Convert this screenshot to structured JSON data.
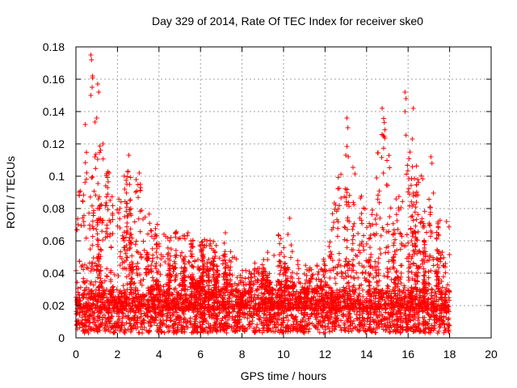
{
  "chart_data": {
    "type": "scatter",
    "title": "Day 329 of 2014, Rate Of TEC Index for receiver ske0",
    "xlabel": "GPS time / hours",
    "ylabel": "ROTI / TECUs",
    "xlim": [
      0,
      20
    ],
    "ylim": [
      0,
      0.18
    ],
    "x_ticks": [
      "0",
      "2",
      "4",
      "6",
      "8",
      "10",
      "12",
      "14",
      "16",
      "18",
      "20"
    ],
    "y_ticks": [
      "0",
      "0.02",
      "0.04",
      "0.06",
      "0.08",
      "0.1",
      "0.12",
      "0.14",
      "0.16",
      "0.18"
    ],
    "grid": true,
    "marker": "plus",
    "color": "#ff0000",
    "x_range_of_data": [
      0,
      18
    ],
    "envelope": {
      "description_hours": [
        0,
        0.5,
        0.75,
        1,
        1.5,
        2,
        2.5,
        3,
        3.5,
        4,
        5,
        6,
        7,
        8,
        9,
        10,
        11,
        12,
        13,
        14,
        14.8,
        15.5,
        16,
        16.5,
        17,
        17.5,
        18
      ],
      "typical_max": [
        0.09,
        0.12,
        0.17,
        0.13,
        0.11,
        0.09,
        0.11,
        0.1,
        0.08,
        0.07,
        0.065,
        0.06,
        0.065,
        0.045,
        0.05,
        0.07,
        0.045,
        0.05,
        0.13,
        0.08,
        0.14,
        0.08,
        0.15,
        0.1,
        0.11,
        0.075,
        0.07
      ]
    },
    "notable_points": [
      {
        "x": 0.72,
        "y": 0.175
      },
      {
        "x": 0.75,
        "y": 0.172
      },
      {
        "x": 0.8,
        "y": 0.162
      },
      {
        "x": 0.78,
        "y": 0.155
      },
      {
        "x": 0.72,
        "y": 0.15
      },
      {
        "x": 1.05,
        "y": 0.157
      },
      {
        "x": 1.1,
        "y": 0.152
      },
      {
        "x": 1.0,
        "y": 0.136
      },
      {
        "x": 0.45,
        "y": 0.132
      },
      {
        "x": 1.3,
        "y": 0.12
      },
      {
        "x": 2.55,
        "y": 0.113
      },
      {
        "x": 3.05,
        "y": 0.102
      },
      {
        "x": 13.05,
        "y": 0.136
      },
      {
        "x": 13.1,
        "y": 0.13
      },
      {
        "x": 13.0,
        "y": 0.113
      },
      {
        "x": 13.05,
        "y": 0.09
      },
      {
        "x": 14.75,
        "y": 0.142
      },
      {
        "x": 14.8,
        "y": 0.125
      },
      {
        "x": 15.85,
        "y": 0.152
      },
      {
        "x": 15.9,
        "y": 0.148
      },
      {
        "x": 15.85,
        "y": 0.14
      },
      {
        "x": 16.25,
        "y": 0.142
      },
      {
        "x": 16.2,
        "y": 0.123
      },
      {
        "x": 17.1,
        "y": 0.112
      },
      {
        "x": 17.15,
        "y": 0.108
      },
      {
        "x": 7.2,
        "y": 0.065
      },
      {
        "x": 10.3,
        "y": 0.074
      },
      {
        "x": 5.4,
        "y": 0.065
      },
      {
        "x": 17.85,
        "y": 0.072
      },
      {
        "x": 2.35,
        "y": 0.092
      },
      {
        "x": 3.1,
        "y": 0.095
      },
      {
        "x": 1.6,
        "y": 0.102
      }
    ],
    "baseline_band": [
      0.003,
      0.03
    ]
  }
}
